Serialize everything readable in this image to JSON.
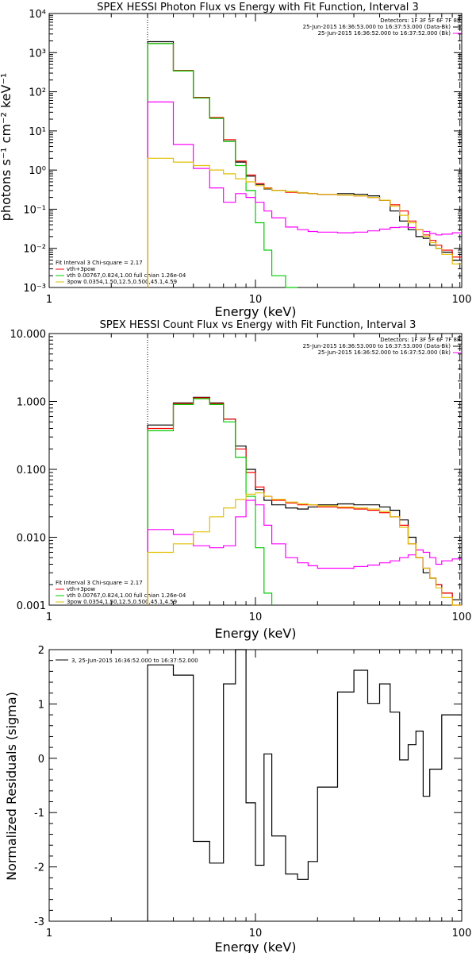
{
  "chart_data": [
    {
      "type": "line",
      "title": "SPEX HESSI Photon Flux vs Energy with Fit Function, Interval 3",
      "xlabel": "Energy (keV)",
      "ylabel": "photons s⁻¹ cm⁻² keV⁻¹",
      "xscale": "log",
      "yscale": "log",
      "xlim": [
        1,
        100
      ],
      "ylim": [
        0.001,
        10000
      ],
      "xticks": [
        "1",
        "10",
        "100"
      ],
      "yticks": [
        "10⁻³",
        "10⁻²",
        "10⁻¹",
        "10⁰",
        "10¹",
        "10²",
        "10³",
        "10⁴"
      ],
      "header_lines": [
        "Detectors: 1F 3F 5F 6F 7F 8F",
        "25-Jun-2015 16:36:53.000 to 16:37:53.000 (Data-Bk)",
        "25-Jun-2015 16:36:52.000 to 16:37:52.000 (Bk)"
      ],
      "legend_lines": [
        "Fit Interval 3   Chi-square = 2.17",
        "vth+3pow",
        "vth 0.00767,0.824,1.00  full chian 1.26e-04",
        "3pow 0.0354,1.50,12.5,0.500,45.1,4.59"
      ],
      "edges": [
        3.0,
        4.0,
        5.0,
        6.0,
        7.0,
        8.0,
        9.0,
        10.0,
        11.0,
        12.0,
        14.0,
        16.0,
        18.0,
        20.0,
        25.0,
        30.0,
        35.0,
        40.0,
        45.0,
        50.0,
        55.0,
        60.0,
        65.0,
        70.0,
        75.0,
        80.0,
        90.0,
        100.0
      ],
      "series": [
        {
          "name": "Data-Bk",
          "color": "#000000",
          "values": [
            1900,
            350,
            70,
            21,
            5.5,
            1.6,
            0.7,
            0.43,
            0.33,
            0.3,
            0.28,
            0.26,
            0.25,
            0.24,
            0.25,
            0.24,
            0.22,
            0.17,
            0.09,
            0.05,
            0.03,
            0.02,
            0.018,
            0.012,
            0.01,
            0.008,
            0.005
          ]
        },
        {
          "name": "vth+3pow",
          "color": "#ff0000",
          "values": [
            1700,
            350,
            72,
            22,
            6.0,
            1.7,
            0.75,
            0.45,
            0.35,
            0.3,
            0.27,
            0.26,
            0.25,
            0.24,
            0.23,
            0.22,
            0.2,
            0.17,
            0.13,
            0.09,
            0.05,
            0.03,
            0.022,
            0.016,
            0.012,
            0.009,
            0.006
          ]
        },
        {
          "name": "vth",
          "color": "#00cc00",
          "values": [
            1700,
            340,
            70,
            21,
            5.4,
            1.3,
            0.3,
            0.045,
            0.009,
            0.002,
            0.001
          ]
        },
        {
          "name": "Bk",
          "color": "#ff00ff",
          "values": [
            55,
            4.5,
            1.1,
            0.35,
            0.15,
            0.25,
            0.2,
            0.15,
            0.09,
            0.06,
            0.035,
            0.03,
            0.027,
            0.026,
            0.025,
            0.026,
            0.028,
            0.031,
            0.034,
            0.035,
            0.034,
            0.03,
            0.027,
            0.024,
            0.022,
            0.023,
            0.025
          ]
        },
        {
          "name": "3pow",
          "color": "#e0c000",
          "values": [
            2.0,
            1.6,
            1.3,
            1.0,
            0.8,
            0.6,
            0.5,
            0.4,
            0.34,
            0.3,
            0.28,
            0.26,
            0.25,
            0.24,
            0.23,
            0.22,
            0.2,
            0.17,
            0.12,
            0.07,
            0.045,
            0.03,
            0.02,
            0.014,
            0.01,
            0.007,
            0.004
          ]
        }
      ]
    },
    {
      "type": "line",
      "title": "SPEX HESSI Count Flux vs Energy with Fit Function, Interval 3",
      "xlabel": "Energy (keV)",
      "ylabel": "",
      "xscale": "log",
      "yscale": "log",
      "xlim": [
        1,
        100
      ],
      "ylim": [
        0.001,
        10
      ],
      "xticks": [
        "1",
        "10",
        "100"
      ],
      "yticks": [
        "0.001",
        "0.010",
        "0.100",
        "1.000",
        "10.000"
      ],
      "header_lines": [
        "Detectors: 1F 3F 5F 6F 7F 8F",
        "25-Jun-2015 16:36:53.000 to 16:37:53.000 (Data-Bk)",
        "25-Jun-2015 16:36:52.000 to 16:37:52.000 (Bk)"
      ],
      "legend_lines": [
        "Fit Interval 3   Chi-square = 2.17",
        "vth+3pow",
        "vth 0.00767,0.824,1.00  full chian 1.26e-04",
        "3pow 0.0354,1.50,12.5,0.500,45.1,4.59"
      ],
      "edges": [
        3.0,
        4.0,
        5.0,
        6.0,
        7.0,
        8.0,
        9.0,
        10.0,
        11.0,
        12.0,
        14.0,
        16.0,
        18.0,
        20.0,
        25.0,
        30.0,
        35.0,
        40.0,
        45.0,
        50.0,
        55.0,
        60.0,
        65.0,
        70.0,
        75.0,
        80.0,
        90.0,
        100.0
      ],
      "series": [
        {
          "name": "Data-Bk",
          "color": "#000000",
          "values": [
            0.45,
            0.95,
            1.15,
            0.95,
            0.55,
            0.22,
            0.1,
            0.05,
            0.035,
            0.03,
            0.027,
            0.026,
            0.028,
            0.03,
            0.031,
            0.03,
            0.03,
            0.028,
            0.025,
            0.018,
            0.01,
            0.005,
            0.003,
            0.0025,
            0.002,
            0.0015,
            0.0012
          ]
        },
        {
          "name": "vth+3pow",
          "color": "#ff0000",
          "values": [
            0.4,
            0.93,
            1.13,
            0.93,
            0.55,
            0.2,
            0.09,
            0.055,
            0.04,
            0.035,
            0.032,
            0.03,
            0.03,
            0.028,
            0.027,
            0.026,
            0.025,
            0.023,
            0.02,
            0.015,
            0.008,
            0.005,
            0.0035,
            0.0025,
            0.002,
            0.0015,
            0.001
          ]
        },
        {
          "name": "vth",
          "color": "#00cc00",
          "values": [
            0.37,
            0.9,
            1.1,
            0.9,
            0.5,
            0.15,
            0.04,
            0.007,
            0.0015
          ]
        },
        {
          "name": "Bk",
          "color": "#ff00ff",
          "values": [
            0.013,
            0.011,
            0.0075,
            0.007,
            0.0075,
            0.02,
            0.035,
            0.03,
            0.015,
            0.008,
            0.005,
            0.0042,
            0.0038,
            0.0035,
            0.0035,
            0.0037,
            0.0039,
            0.0042,
            0.0045,
            0.005,
            0.0055,
            0.0065,
            0.006,
            0.005,
            0.004,
            0.0045,
            0.0048
          ]
        },
        {
          "name": "3pow",
          "color": "#e0c000",
          "values": [
            0.006,
            0.008,
            0.012,
            0.02,
            0.027,
            0.036,
            0.043,
            0.045,
            0.04,
            0.036,
            0.033,
            0.031,
            0.03,
            0.029,
            0.028,
            0.027,
            0.026,
            0.024,
            0.02,
            0.014,
            0.008,
            0.005,
            0.0035,
            0.0025,
            0.0018,
            0.0013,
            0.001
          ]
        }
      ]
    },
    {
      "type": "line",
      "title": "",
      "xlabel": "Energy (keV)",
      "ylabel": "Normalized Residuals (sigma)",
      "xscale": "log",
      "yscale": "linear",
      "xlim": [
        1,
        100
      ],
      "ylim": [
        -3,
        2
      ],
      "xticks": [
        "1",
        "10",
        "100"
      ],
      "yticks": [
        "-3",
        "-2",
        "-1",
        "0",
        "1",
        "2"
      ],
      "legend_lines": [
        "3, 25-Jun-2015 16:36:52.000 to 16:37:52.000"
      ],
      "edges": [
        3.0,
        4.0,
        5.0,
        6.0,
        7.0,
        8.0,
        9.0,
        10.0,
        11.0,
        12.0,
        14.0,
        16.0,
        18.0,
        20.0,
        25.0,
        30.0,
        35.0,
        40.0,
        45.0,
        50.0,
        55.0,
        60.0,
        65.0,
        70.0,
        75.0,
        80.0,
        90.0,
        100.0
      ],
      "series": [
        {
          "name": "3, 25-Jun-2015 16:36:52.000 to 16:37:52.000",
          "color": "#000000",
          "values": [
            1.72,
            1.53,
            -1.53,
            -1.93,
            1.37,
            2.0,
            -0.82,
            -1.97,
            0.08,
            -1.43,
            -2.13,
            -2.23,
            -1.9,
            -0.53,
            1.22,
            1.62,
            1.01,
            1.37,
            0.85,
            -0.03,
            0.25,
            0.5,
            -0.7,
            -0.2,
            -0.2,
            0.8,
            0.8
          ]
        }
      ]
    }
  ]
}
